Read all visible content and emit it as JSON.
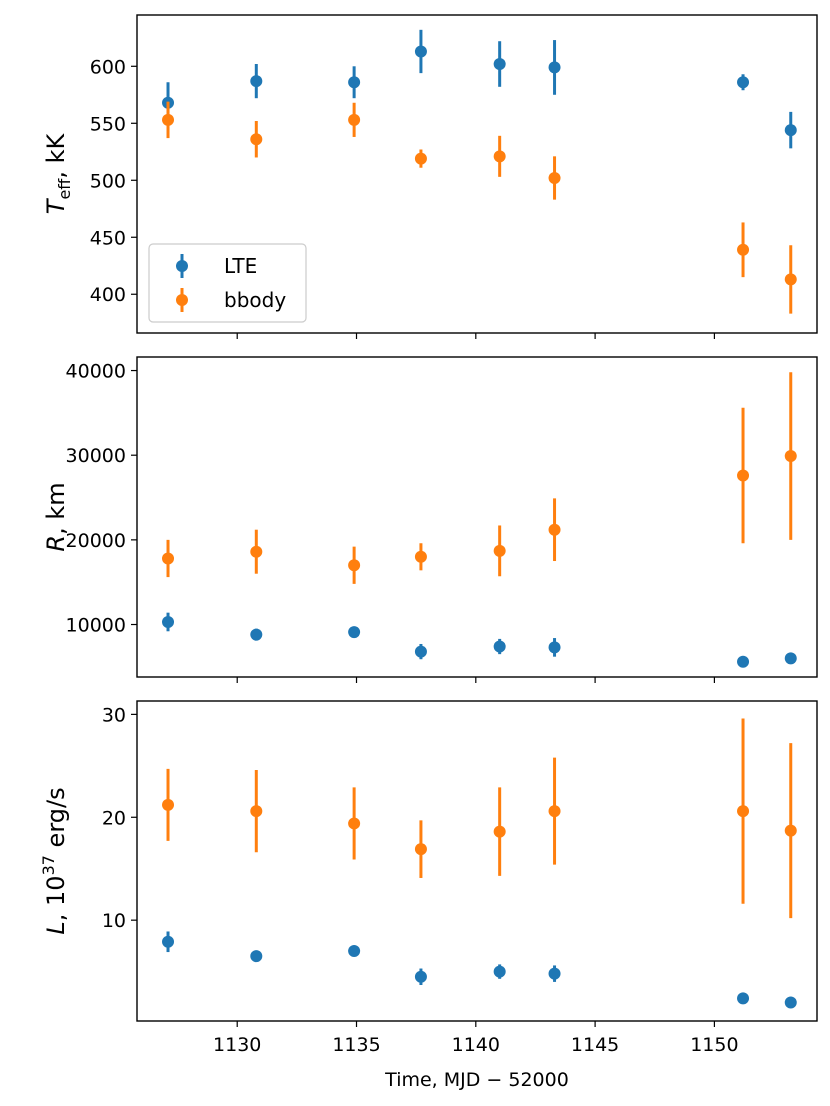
{
  "chart_data": {
    "type": "scatter",
    "xlabel": "Time, MJD − 52000",
    "xlim": [
      1125.8,
      1154.3
    ],
    "xticks": [
      1130,
      1135,
      1140,
      1145,
      1150
    ],
    "x": [
      1127.1,
      1130.8,
      1134.9,
      1137.7,
      1141.0,
      1143.3,
      1151.2,
      1153.2
    ],
    "colors": {
      "LTE": "#1f77b4",
      "bbody": "#ff7f0e"
    },
    "legend": {
      "position": "bottom-left",
      "entries": [
        "LTE",
        "bbody"
      ]
    },
    "panels": [
      {
        "id": "teff",
        "ylabel": {
          "main": "T",
          "sub": "eff",
          "unit": ", kK"
        },
        "ylim": [
          366,
          645
        ],
        "yticks": [
          400,
          450,
          500,
          550,
          600
        ],
        "series": [
          {
            "name": "LTE",
            "values": [
              568,
              587,
              586,
              613,
              602,
              599,
              586,
              544
            ],
            "err_lo": [
              18,
              15,
              14,
              19,
              20,
              24,
              7,
              16
            ],
            "err_hi": [
              18,
              15,
              14,
              19,
              20,
              24,
              7,
              16
            ]
          },
          {
            "name": "bbody",
            "values": [
              553,
              536,
              553,
              519,
              521,
              502,
              439,
              413
            ],
            "err_lo": [
              16,
              16,
              15,
              8,
              18,
              19,
              24,
              30
            ],
            "err_hi": [
              16,
              16,
              15,
              8,
              18,
              19,
              24,
              30
            ]
          }
        ]
      },
      {
        "id": "radius",
        "ylabel": {
          "main": "R",
          "unit": ", km"
        },
        "ylim": [
          3800,
          41600
        ],
        "yticks": [
          10000,
          20000,
          30000,
          40000
        ],
        "series": [
          {
            "name": "LTE",
            "values": [
              10300,
              8800,
              9100,
              6800,
              7400,
              7300,
              5600,
              6000
            ],
            "err_lo": [
              1100,
              700,
              600,
              900,
              900,
              1100,
              400,
              500
            ],
            "err_hi": [
              1100,
              700,
              600,
              900,
              900,
              1100,
              400,
              500
            ]
          },
          {
            "name": "bbody",
            "values": [
              17800,
              18600,
              17000,
              18000,
              18700,
              21200,
              27600,
              29900
            ],
            "err_lo": [
              2200,
              2600,
              2200,
              1600,
              3000,
              3700,
              8000,
              9900
            ],
            "err_hi": [
              2200,
              2600,
              2200,
              1600,
              3000,
              3700,
              8000,
              9900
            ]
          }
        ]
      },
      {
        "id": "luminosity",
        "ylabel": {
          "main": "L",
          "mid": ", 10",
          "sup": "37",
          "unit": " erg/s"
        },
        "ylim": [
          0.2,
          31.3
        ],
        "yticks": [
          10,
          20,
          30
        ],
        "series": [
          {
            "name": "LTE",
            "values": [
              7.9,
              6.5,
              7.0,
              4.5,
              5.0,
              4.8,
              2.4,
              2.0
            ],
            "err_lo": [
              1.0,
              0.5,
              0.5,
              0.8,
              0.7,
              0.8,
              0.2,
              0.2
            ],
            "err_hi": [
              1.0,
              0.5,
              0.5,
              0.8,
              0.7,
              0.8,
              0.2,
              0.2
            ]
          },
          {
            "name": "bbody",
            "values": [
              21.2,
              20.6,
              19.4,
              16.9,
              18.6,
              20.6,
              20.6,
              18.7
            ],
            "err_lo": [
              3.5,
              4.0,
              3.5,
              2.8,
              4.3,
              5.2,
              9.0,
              8.5
            ],
            "err_hi": [
              3.5,
              4.0,
              3.5,
              2.8,
              4.3,
              5.2,
              9.0,
              8.5
            ]
          }
        ]
      }
    ]
  }
}
